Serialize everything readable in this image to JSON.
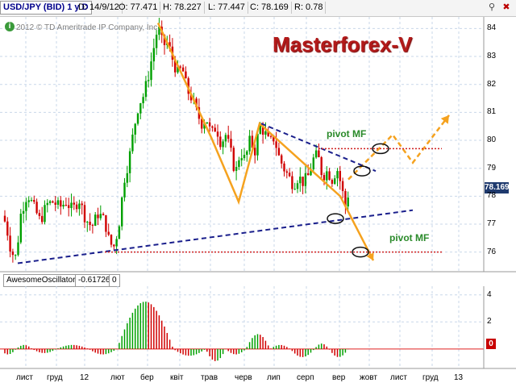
{
  "header": {
    "symbol": "USD/JPY (BID) 1 y D",
    "date": "D: 14/9/12",
    "open": "O: 77.471",
    "high": "H: 78.227",
    "low": "L: 77.447",
    "close": "C: 78.169",
    "range": "R: 0.78"
  },
  "copyright": "2012 © TD Ameritrade IP Company, Inc.",
  "brand": "Masterforex-V",
  "annotations": {
    "pivot_upper": "pivot MF",
    "pivot_lower": "pivot MF"
  },
  "price_badge": "78.169",
  "indicator": {
    "name": "AwesomeOscillator",
    "value": "-0.61726",
    "extra": "0",
    "zero_badge": "0"
  },
  "colors": {
    "up_candle": "#00a000",
    "down_candle": "#d00000",
    "trend_orange": "#f5a21f",
    "trend_navy": "#1a1f8c",
    "pivot_red": "#d02020",
    "brand": "#b21a1a"
  },
  "chart_data": [
    {
      "type": "candlestick",
      "series_name": "USD/JPY (BID)",
      "y_ticks": [
        76,
        77,
        78,
        79,
        80,
        81,
        82,
        83,
        84
      ],
      "ylim": [
        75.5,
        84.3
      ],
      "x_ticks": [
        "лист",
        "груд",
        "12",
        "лют",
        "бер",
        "квіт",
        "трав",
        "черв",
        "лип",
        "серп",
        "вер",
        "жовт",
        "лист",
        "груд",
        "13"
      ],
      "path": [
        {
          "x": 0,
          "y": 77.6
        },
        {
          "x": 4,
          "y": 77.3
        },
        {
          "x": 8,
          "y": 76.9
        },
        {
          "x": 14,
          "y": 76.0
        },
        {
          "x": 20,
          "y": 75.8
        },
        {
          "x": 26,
          "y": 77.4
        },
        {
          "x": 34,
          "y": 78.1
        },
        {
          "x": 42,
          "y": 77.6
        },
        {
          "x": 50,
          "y": 77.1
        },
        {
          "x": 58,
          "y": 77.7
        },
        {
          "x": 66,
          "y": 77.8
        },
        {
          "x": 74,
          "y": 77.6
        },
        {
          "x": 82,
          "y": 77.8
        },
        {
          "x": 90,
          "y": 77.5
        },
        {
          "x": 98,
          "y": 77.9
        },
        {
          "x": 106,
          "y": 77.2
        },
        {
          "x": 114,
          "y": 76.9
        },
        {
          "x": 122,
          "y": 77.4
        },
        {
          "x": 130,
          "y": 77.1
        },
        {
          "x": 136,
          "y": 76.3
        },
        {
          "x": 142,
          "y": 76.2
        },
        {
          "x": 148,
          "y": 77.1
        },
        {
          "x": 154,
          "y": 78.6
        },
        {
          "x": 160,
          "y": 79.3
        },
        {
          "x": 166,
          "y": 80.4
        },
        {
          "x": 172,
          "y": 81.3
        },
        {
          "x": 178,
          "y": 81.6
        },
        {
          "x": 184,
          "y": 82.3
        },
        {
          "x": 190,
          "y": 83.2
        },
        {
          "x": 196,
          "y": 84.1
        },
        {
          "x": 202,
          "y": 83.4
        },
        {
          "x": 208,
          "y": 83.5
        },
        {
          "x": 214,
          "y": 82.9
        },
        {
          "x": 220,
          "y": 82.4
        },
        {
          "x": 226,
          "y": 82.6
        },
        {
          "x": 232,
          "y": 81.8
        },
        {
          "x": 238,
          "y": 81.5
        },
        {
          "x": 244,
          "y": 81.0
        },
        {
          "x": 250,
          "y": 80.6
        },
        {
          "x": 256,
          "y": 80.8
        },
        {
          "x": 262,
          "y": 80.2
        },
        {
          "x": 268,
          "y": 80.5
        },
        {
          "x": 274,
          "y": 79.9
        },
        {
          "x": 280,
          "y": 80.2
        },
        {
          "x": 286,
          "y": 79.6
        },
        {
          "x": 292,
          "y": 78.8
        },
        {
          "x": 298,
          "y": 79.6
        },
        {
          "x": 304,
          "y": 79.3
        },
        {
          "x": 310,
          "y": 80.0
        },
        {
          "x": 316,
          "y": 79.6
        },
        {
          "x": 322,
          "y": 80.5
        },
        {
          "x": 328,
          "y": 80.3
        },
        {
          "x": 334,
          "y": 79.9
        },
        {
          "x": 340,
          "y": 80.1
        },
        {
          "x": 346,
          "y": 79.4
        },
        {
          "x": 352,
          "y": 79.0
        },
        {
          "x": 358,
          "y": 78.7
        },
        {
          "x": 364,
          "y": 78.4
        },
        {
          "x": 370,
          "y": 78.7
        },
        {
          "x": 376,
          "y": 78.5
        },
        {
          "x": 382,
          "y": 78.7
        },
        {
          "x": 388,
          "y": 79.3
        },
        {
          "x": 394,
          "y": 79.5
        },
        {
          "x": 400,
          "y": 78.7
        },
        {
          "x": 406,
          "y": 78.9
        },
        {
          "x": 412,
          "y": 78.6
        },
        {
          "x": 418,
          "y": 79.0
        },
        {
          "x": 424,
          "y": 78.3
        },
        {
          "x": 428,
          "y": 77.6
        },
        {
          "x": 432,
          "y": 78.1
        }
      ],
      "overlays": [
        {
          "kind": "orange_zigzag",
          "points": [
            [
              196,
              84.2
            ],
            [
              262,
              80.1
            ],
            [
              296,
              77.8
            ],
            [
              322,
              80.6
            ],
            [
              422,
              78.0
            ],
            [
              463,
              75.7
            ]
          ]
        },
        {
          "kind": "orange_dashed_projection",
          "points": [
            [
              432,
              78.6
            ],
            [
              470,
              79.7
            ],
            [
              487,
              80.2
            ],
            [
              512,
              79.2
            ],
            [
              557,
              80.9
            ]
          ]
        },
        {
          "kind": "navy_dashed_upper",
          "points": [
            [
              324,
              80.6
            ],
            [
              466,
              78.9
            ]
          ]
        },
        {
          "kind": "navy_dashed_lower",
          "points": [
            [
              22,
              75.6
            ],
            [
              512,
              77.5
            ]
          ]
        },
        {
          "kind": "red_dotted_pivot_upper",
          "y": 79.7,
          "x_from": 395,
          "x_to": 548
        },
        {
          "kind": "red_dotted_pivot_lower",
          "y": 76.0,
          "x_from": 130,
          "x_to": 548
        },
        {
          "kind": "ellipse",
          "x": 449,
          "y": 78.9
        },
        {
          "kind": "ellipse",
          "x": 472,
          "y": 79.7
        },
        {
          "kind": "ellipse",
          "x": 416,
          "y": 77.2
        },
        {
          "kind": "ellipse",
          "x": 447,
          "y": 76.0
        }
      ]
    },
    {
      "type": "bar",
      "series_name": "AwesomeOscillator",
      "y_ticks": [
        0,
        2,
        4
      ],
      "ylim": [
        -1.2,
        4.4
      ],
      "waves": [
        {
          "from": 0,
          "to": 20,
          "v": -0.4
        },
        {
          "from": 20,
          "to": 40,
          "v": 0.3
        },
        {
          "from": 40,
          "to": 70,
          "v": -0.3
        },
        {
          "from": 70,
          "to": 110,
          "v": 0.3
        },
        {
          "from": 110,
          "to": 145,
          "v": -0.4
        },
        {
          "from": 145,
          "to": 215,
          "v": 3.5
        },
        {
          "from": 215,
          "to": 255,
          "v": -0.5
        },
        {
          "from": 255,
          "to": 280,
          "v": -0.9
        },
        {
          "from": 280,
          "to": 305,
          "v": -0.4
        },
        {
          "from": 305,
          "to": 335,
          "v": 1.1
        },
        {
          "from": 335,
          "to": 360,
          "v": 0.3
        },
        {
          "from": 360,
          "to": 390,
          "v": -0.6
        },
        {
          "from": 390,
          "to": 408,
          "v": 0.4
        },
        {
          "from": 408,
          "to": 432,
          "v": -0.6
        }
      ]
    }
  ]
}
